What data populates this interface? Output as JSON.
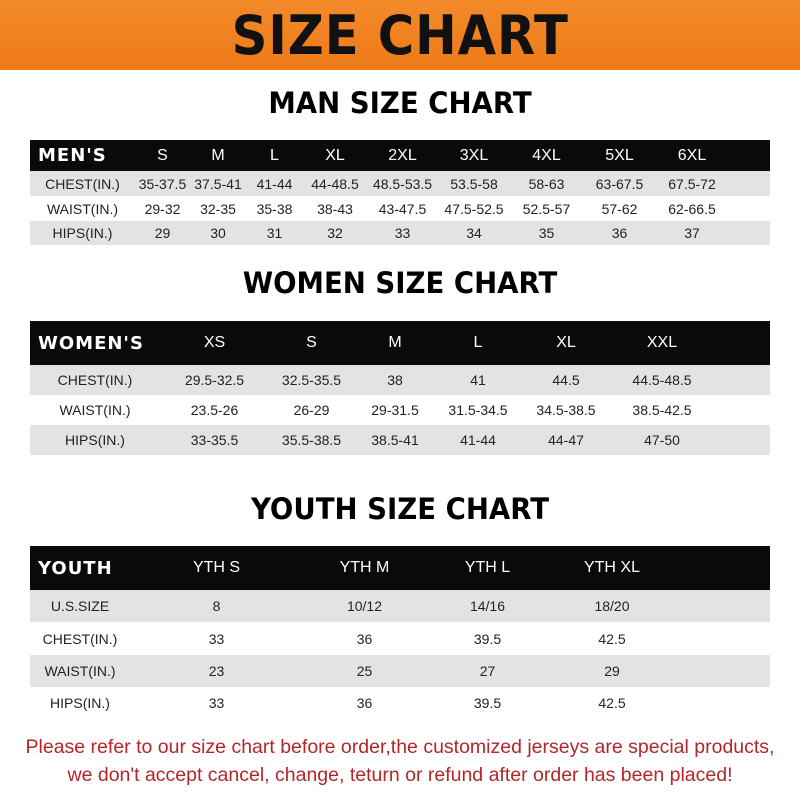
{
  "banner_title": "SIZE CHART",
  "men": {
    "title": "MAN SIZE CHART",
    "header_label": "MEN'S",
    "sizes": [
      "S",
      "M",
      "L",
      "XL",
      "2XL",
      "3XL",
      "4XL",
      "5XL",
      "6XL"
    ],
    "rows": [
      {
        "label": "CHEST(IN.)",
        "values": [
          "35-37.5",
          "37.5-41",
          "41-44",
          "44-48.5",
          "48.5-53.5",
          "53.5-58",
          "58-63",
          "63-67.5",
          "67.5-72"
        ]
      },
      {
        "label": "WAIST(IN.)",
        "values": [
          "29-32",
          "32-35",
          "35-38",
          "38-43",
          "43-47.5",
          "47.5-52.5",
          "52.5-57",
          "57-62",
          "62-66.5"
        ]
      },
      {
        "label": "HIPS(IN.)",
        "values": [
          "29",
          "30",
          "31",
          "32",
          "33",
          "34",
          "35",
          "36",
          "37"
        ]
      }
    ]
  },
  "women": {
    "title": "WOMEN SIZE CHART",
    "header_label": "WOMEN'S",
    "sizes": [
      "XS",
      "S",
      "M",
      "L",
      "XL",
      "XXL"
    ],
    "rows": [
      {
        "label": "CHEST(IN.)",
        "values": [
          "29.5-32.5",
          "32.5-35.5",
          "38",
          "41",
          "44.5",
          "44.5-48.5"
        ]
      },
      {
        "label": "WAIST(IN.)",
        "values": [
          "23.5-26",
          "26-29",
          "29-31.5",
          "31.5-34.5",
          "34.5-38.5",
          "38.5-42.5"
        ]
      },
      {
        "label": "HIPS(IN.)",
        "values": [
          "33-35.5",
          "35.5-38.5",
          "38.5-41",
          "41-44",
          "44-47",
          "47-50"
        ]
      }
    ]
  },
  "youth": {
    "title": "YOUTH SIZE CHART",
    "header_label": "YOUTH",
    "sizes": [
      "YTH S",
      "YTH M",
      "YTH L",
      "YTH XL"
    ],
    "rows": [
      {
        "label": "U.S.SIZE",
        "values": [
          "8",
          "10/12",
          "14/16",
          "18/20"
        ]
      },
      {
        "label": "CHEST(IN.)",
        "values": [
          "33",
          "36",
          "39.5",
          "42.5"
        ]
      },
      {
        "label": "WAIST(IN.)",
        "values": [
          "23",
          "25",
          "27",
          "29"
        ]
      },
      {
        "label": "HIPS(IN.)",
        "values": [
          "33",
          "36",
          "39.5",
          "42.5"
        ]
      }
    ]
  },
  "notice": {
    "line1": "Please refer to our size chart before order,the customized jerseys are special products,",
    "line2": "we don't accept cancel, change, teturn or refund after order has been placed!"
  },
  "colors": {
    "banner": "#ef7f1f",
    "header_row": "#0a0a0a",
    "stripe": "#e3e3e3",
    "notice": "#b3262a"
  }
}
